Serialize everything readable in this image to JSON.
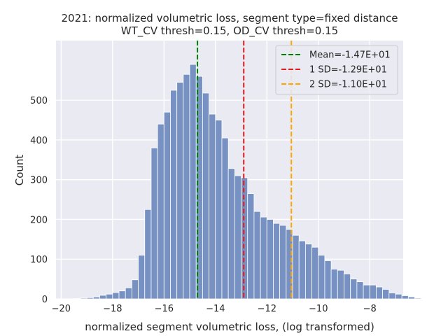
{
  "chart_data": {
    "type": "bar",
    "title": "2021: normalized volumetric loss, segment type=fixed distance",
    "subtitle": "WT_CV thresh=0.15, OD_CV thresh=0.15",
    "xlabel": "normalized segment volumetric loss, (log transformed)",
    "ylabel": "Count",
    "xlim": [
      -20.2,
      -6.7
    ],
    "ylim": [
      0,
      650
    ],
    "xticks": [
      -20,
      -18,
      -16,
      -14,
      -12,
      -10,
      -8
    ],
    "xtick_labels": [
      "−20",
      "−18",
      "−16",
      "−14",
      "−12",
      "−10",
      "−8"
    ],
    "yticks": [
      0,
      100,
      200,
      300,
      400,
      500
    ],
    "ytick_labels": [
      "0",
      "100",
      "200",
      "300",
      "400",
      "500"
    ],
    "grid": true,
    "bar_color": "#7792c2",
    "bin_width": 0.25,
    "bin_start": -19.5,
    "counts": [
      1,
      2,
      3,
      5,
      9,
      12,
      16,
      20,
      28,
      48,
      110,
      225,
      380,
      440,
      470,
      525,
      545,
      565,
      590,
      560,
      518,
      465,
      450,
      405,
      328,
      310,
      305,
      265,
      220,
      206,
      200,
      190,
      185,
      175,
      160,
      146,
      138,
      130,
      110,
      96,
      75,
      72,
      63,
      50,
      43,
      35,
      35,
      30,
      24,
      15,
      12,
      8,
      5,
      2,
      1
    ],
    "legend_position": "top-right",
    "vlines": [
      {
        "name": "Mean=-1.47E+01",
        "x": -14.7,
        "color": "#008000"
      },
      {
        "name": "1 SD=-1.29E+01",
        "x": -12.9,
        "color": "#e41a1c"
      },
      {
        "name": "2 SD=-1.10E+01",
        "x": -11.05,
        "color": "#ffa500"
      }
    ]
  }
}
